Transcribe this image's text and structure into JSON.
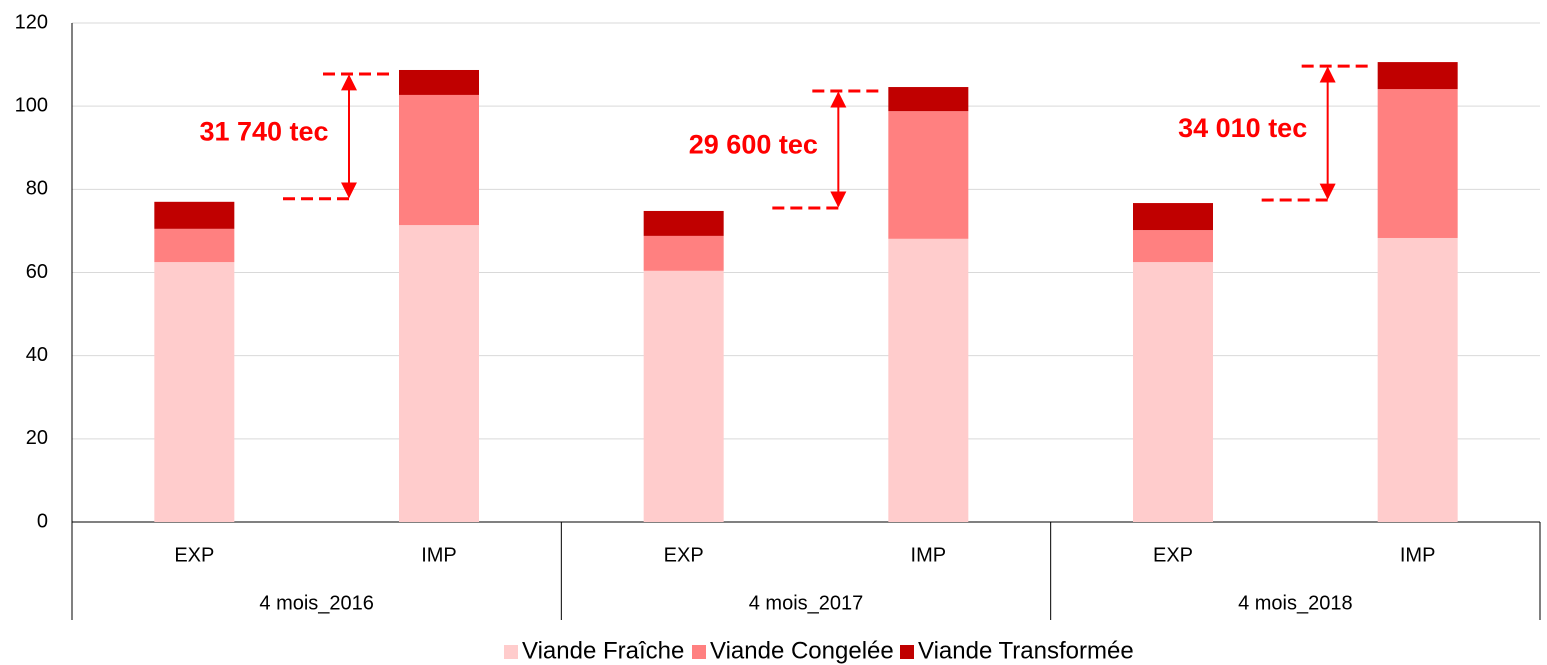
{
  "chart_data": {
    "type": "stacked_bar",
    "categories": [
      "EXP",
      "IMP",
      "EXP",
      "IMP",
      "EXP",
      "IMP"
    ],
    "groups": [
      "4 mois_2016",
      "4 mois_2017",
      "4 mois_2018"
    ],
    "series": [
      {
        "name": "Viande Fraîche",
        "color": "#ffcccc",
        "values": [
          62.5,
          71.4,
          60.4,
          68.1,
          62.5,
          68.3
        ]
      },
      {
        "name": "Viande Congelée",
        "color": "#ff8080",
        "values": [
          8.0,
          31.3,
          8.4,
          30.7,
          7.7,
          35.8
        ]
      },
      {
        "name": "Viande Transformée",
        "color": "#c00000",
        "values": [
          6.5,
          6.0,
          6.0,
          5.8,
          6.5,
          6.5
        ]
      }
    ],
    "annotations": [
      "31 740 tec",
      "29 600 tec",
      "34 010 tec"
    ],
    "ylim": [
      0,
      120
    ],
    "yticks": [
      0,
      20,
      40,
      60,
      80,
      100,
      120
    ],
    "grid": true,
    "legend": "bottom"
  }
}
